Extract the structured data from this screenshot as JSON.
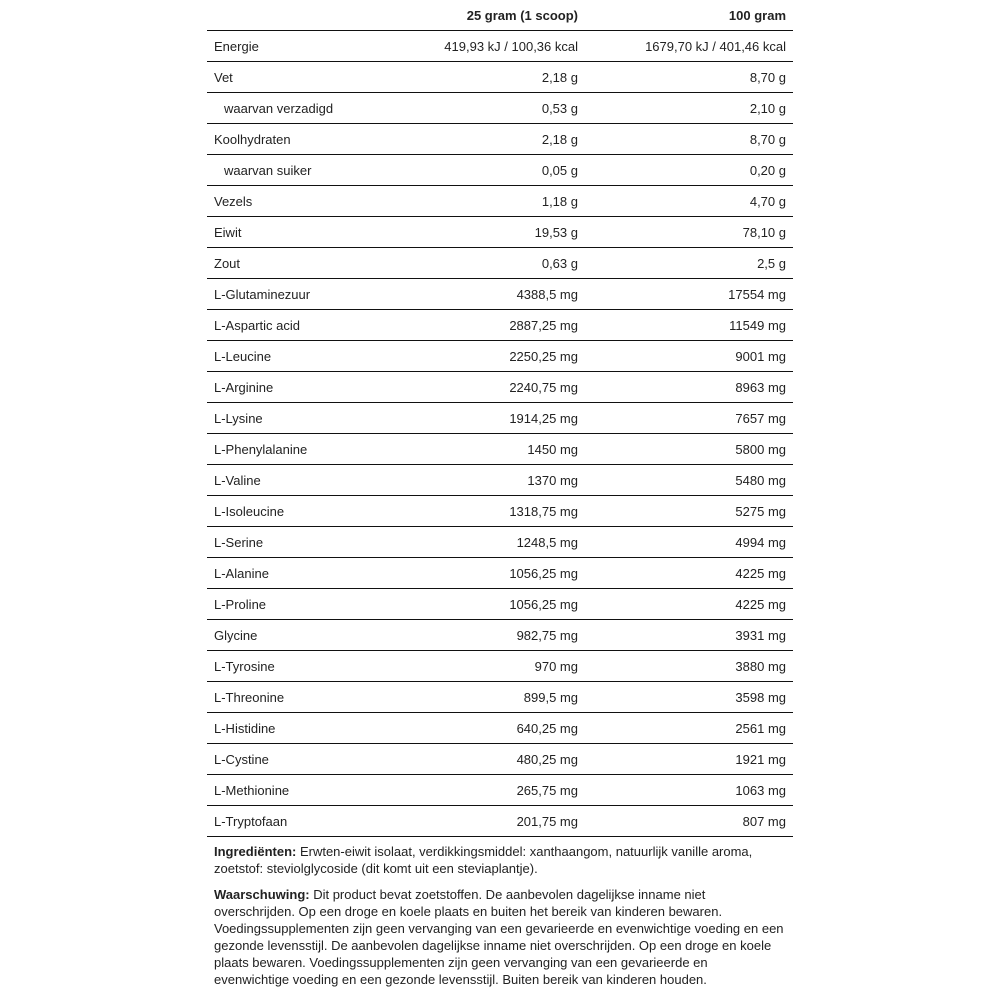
{
  "table": {
    "headers": [
      "",
      "25 gram (1 scoop)",
      "100 gram"
    ],
    "rows": [
      {
        "name": "Energie",
        "v1": "419,93 kJ / 100,36 kcal",
        "v2": "1679,70 kJ / 401,46 kcal",
        "sub": false
      },
      {
        "name": "Vet",
        "v1": "2,18 g",
        "v2": "8,70 g",
        "sub": false
      },
      {
        "name": "waarvan verzadigd",
        "v1": "0,53 g",
        "v2": "2,10 g",
        "sub": true
      },
      {
        "name": "Koolhydraten",
        "v1": "2,18 g",
        "v2": "8,70 g",
        "sub": false
      },
      {
        "name": "waarvan suiker",
        "v1": "0,05 g",
        "v2": "0,20 g",
        "sub": true
      },
      {
        "name": "Vezels",
        "v1": "1,18 g",
        "v2": "4,70 g",
        "sub": false
      },
      {
        "name": "Eiwit",
        "v1": "19,53 g",
        "v2": "78,10 g",
        "sub": false
      },
      {
        "name": "Zout",
        "v1": "0,63 g",
        "v2": "2,5 g",
        "sub": false
      },
      {
        "name": "L-Glutaminezuur",
        "v1": "4388,5 mg",
        "v2": "17554 mg",
        "sub": false
      },
      {
        "name": "L-Aspartic acid",
        "v1": "2887,25 mg",
        "v2": "11549 mg",
        "sub": false
      },
      {
        "name": "L-Leucine",
        "v1": "2250,25 mg",
        "v2": "9001 mg",
        "sub": false
      },
      {
        "name": "L-Arginine",
        "v1": "2240,75 mg",
        "v2": "8963 mg",
        "sub": false
      },
      {
        "name": "L-Lysine",
        "v1": "1914,25 mg",
        "v2": "7657 mg",
        "sub": false
      },
      {
        "name": "L-Phenylalanine",
        "v1": "1450 mg",
        "v2": "5800 mg",
        "sub": false
      },
      {
        "name": "L-Valine",
        "v1": "1370 mg",
        "v2": "5480 mg",
        "sub": false
      },
      {
        "name": "L-Isoleucine",
        "v1": "1318,75 mg",
        "v2": "5275 mg",
        "sub": false
      },
      {
        "name": "L-Serine",
        "v1": "1248,5 mg",
        "v2": "4994 mg",
        "sub": false
      },
      {
        "name": "L-Alanine",
        "v1": "1056,25 mg",
        "v2": "4225 mg",
        "sub": false
      },
      {
        "name": "L-Proline",
        "v1": "1056,25 mg",
        "v2": "4225 mg",
        "sub": false
      },
      {
        "name": "Glycine",
        "v1": "982,75 mg",
        "v2": "3931 mg",
        "sub": false
      },
      {
        "name": "L-Tyrosine",
        "v1": "970 mg",
        "v2": "3880 mg",
        "sub": false
      },
      {
        "name": "L-Threonine",
        "v1": "899,5 mg",
        "v2": "3598 mg",
        "sub": false
      },
      {
        "name": "L-Histidine",
        "v1": "640,25 mg",
        "v2": "2561 mg",
        "sub": false
      },
      {
        "name": "L-Cystine",
        "v1": "480,25 mg",
        "v2": "1921 mg",
        "sub": false
      },
      {
        "name": "L-Methionine",
        "v1": "265,75 mg",
        "v2": "1063 mg",
        "sub": false
      },
      {
        "name": "L-Tryptofaan",
        "v1": "201,75 mg",
        "v2": "807 mg",
        "sub": false
      }
    ]
  },
  "ingredients": {
    "label": "Ingrediënten:",
    "text": " Erwten-eiwit isolaat, verdikkingsmiddel: xanthaangom, natuurlijk vanille aroma, zoetstof: steviolglycoside (dit komt uit een steviaplantje)."
  },
  "warning": {
    "label": "Waarschuwing:",
    "text": " Dit product bevat zoetstoffen. De aanbevolen dagelijkse inname niet overschrijden. Op een droge en koele plaats en buiten het bereik van kinderen bewaren. Voedingssupplementen zijn geen vervanging van een gevarieerde en evenwichtige voeding en een gezonde levensstijl. De aanbevolen dagelijkse inname niet overschrijden. Op een droge en koele plaats bewaren. Voedingssupplementen zijn geen vervanging van een gevarieerde en evenwichtige voeding en een gezonde levensstijl. Buiten bereik van kinderen houden."
  }
}
